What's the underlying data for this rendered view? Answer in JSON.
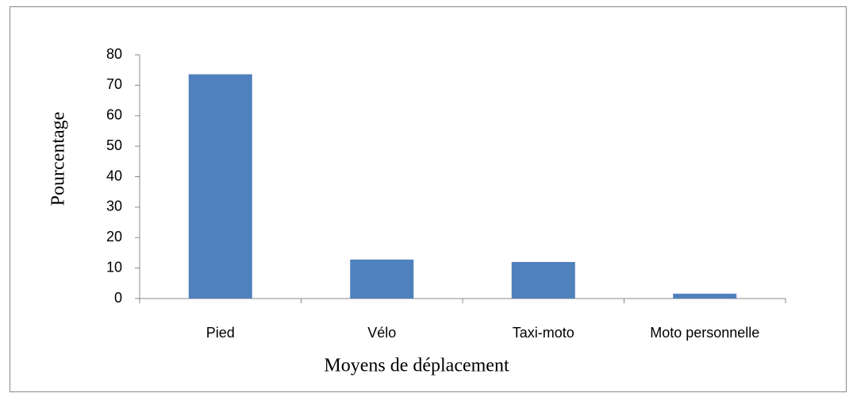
{
  "chart_data": {
    "type": "bar",
    "x_label": "Moyens de déplacement",
    "y_label": "Pourcentage",
    "categories": [
      "Pied",
      "Vélo",
      "Taxi-moto",
      "Moto personnelle"
    ],
    "values": [
      73.6,
      12.8,
      12.0,
      1.6
    ],
    "color": "#4f81bd",
    "ylim": [
      0,
      80
    ],
    "yticks": [
      0,
      10,
      20,
      30,
      40,
      50,
      60,
      70,
      80
    ],
    "grid": false
  }
}
